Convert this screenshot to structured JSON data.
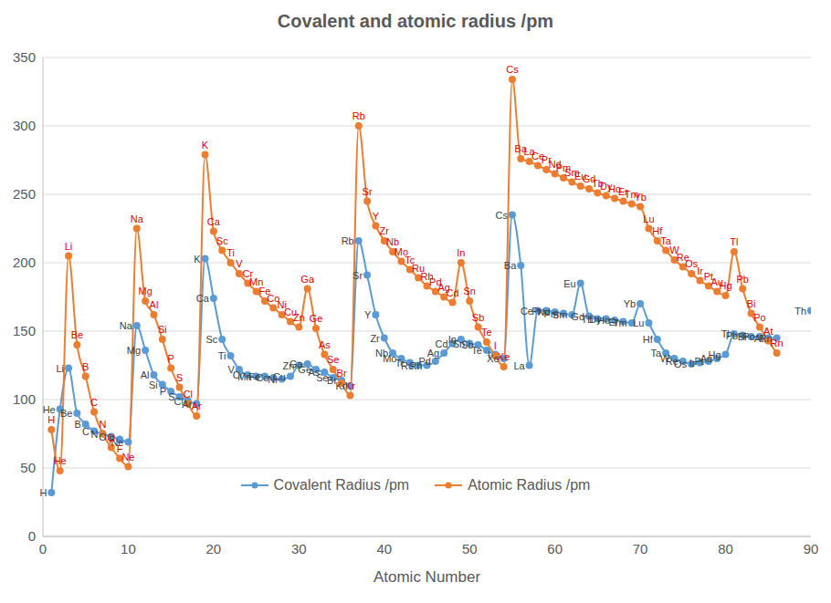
{
  "chart_data": {
    "type": "line",
    "title": "Covalent and atomic radius /pm",
    "x_label": "Atomic Number",
    "x": [
      1,
      2,
      3,
      4,
      5,
      6,
      7,
      8,
      9,
      10,
      11,
      12,
      13,
      14,
      15,
      16,
      17,
      18,
      19,
      20,
      21,
      22,
      23,
      24,
      25,
      26,
      27,
      28,
      29,
      30,
      31,
      32,
      33,
      34,
      35,
      36,
      37,
      38,
      39,
      40,
      41,
      42,
      43,
      44,
      45,
      46,
      47,
      48,
      49,
      50,
      51,
      52,
      53,
      54,
      55,
      56,
      57,
      58,
      59,
      60,
      61,
      62,
      63,
      64,
      65,
      66,
      67,
      68,
      69,
      70,
      71,
      72,
      73,
      74,
      75,
      76,
      77,
      78,
      79,
      80,
      81,
      82,
      83,
      84,
      85,
      86,
      87,
      88,
      89,
      90
    ],
    "series": [
      {
        "name": "Covalent Radius /pm",
        "color": "#5B9BD5",
        "marker": "circle",
        "values": [
          32,
          93,
          123,
          90,
          82,
          77,
          75,
          73,
          71,
          69,
          154,
          136,
          118,
          111,
          106,
          102,
          99,
          97,
          203,
          174,
          144,
          132,
          122,
          118,
          117,
          117,
          116,
          115,
          117,
          125,
          126,
          122,
          120,
          116,
          114,
          110,
          216,
          191,
          162,
          145,
          134,
          130,
          127,
          125,
          125,
          128,
          134,
          141,
          144,
          141,
          140,
          136,
          133,
          130,
          235,
          198,
          125,
          165,
          165,
          164,
          163,
          162,
          185,
          161,
          159,
          159,
          158,
          157,
          156,
          170,
          156,
          144,
          134,
          130,
          128,
          126,
          127,
          128,
          130,
          133,
          148,
          147,
          146,
          146,
          145,
          145,
          null,
          null,
          null,
          165
        ],
        "labels": [
          "H",
          "He",
          "Li",
          "Be",
          "B",
          "C",
          "N",
          "O",
          "F",
          "Ne",
          "Na",
          "Mg",
          "Al",
          "Si",
          "P",
          "S",
          "Cl",
          "Ar",
          "K",
          "Ca",
          "Sc",
          "Ti",
          "V",
          "Cr",
          "Mn",
          "Fe",
          "Co",
          "Ni",
          "Cu",
          "Zn",
          "Ga",
          "Ge",
          "As",
          "Se",
          "Br",
          "Kr",
          "Rb",
          "Sr",
          "Y",
          "Zr",
          "Nb",
          "Mo",
          "Tc",
          "Ru",
          "Rh",
          "Pd",
          "Ag",
          "Cd",
          "In",
          "Sn",
          "Sb",
          "Te",
          "I",
          "Xe",
          "Cs",
          "Ba",
          "La",
          "Ce",
          "Pr",
          "Nd",
          "Pm",
          "Sm",
          "Eu",
          "Gd",
          "Tb",
          "Dy",
          "Ho",
          "Er",
          "Tm",
          "Yb",
          "Lu",
          "Hf",
          "Ta",
          "W",
          "Re",
          "Os",
          "Ir",
          "Pt",
          "Au",
          "Hg",
          "Tl",
          "Pb",
          "Bi",
          "Po",
          "At",
          "Rn",
          null,
          null,
          null,
          "Th"
        ]
      },
      {
        "name": "Atomic Radius /pm",
        "color": "#ED7D31",
        "marker": "circle",
        "values": [
          78,
          48,
          205,
          140,
          117,
          91,
          75,
          65,
          57,
          51,
          225,
          172,
          162,
          144,
          123,
          109,
          97,
          88,
          279,
          223,
          209,
          200,
          192,
          185,
          179,
          172,
          167,
          162,
          157,
          153,
          181,
          152,
          133,
          122,
          112,
          103,
          300,
          245,
          227,
          216,
          208,
          201,
          195,
          189,
          183,
          179,
          175,
          171,
          200,
          172,
          153,
          142,
          132,
          124,
          334,
          276,
          274,
          271,
          268,
          265,
          262,
          259,
          256,
          254,
          251,
          249,
          247,
          245,
          243,
          241,
          225,
          216,
          209,
          202,
          197,
          192,
          187,
          183,
          179,
          176,
          208,
          181,
          163,
          153,
          143,
          134,
          null,
          null,
          null,
          null
        ],
        "labels": [
          "H",
          "He",
          "Li",
          "Be",
          "B",
          "C",
          "N",
          "O",
          "F",
          "Ne",
          "Na",
          "Mg",
          "Al",
          "Si",
          "P",
          "S",
          "Cl",
          "Ar",
          "K",
          "Ca",
          "Sc",
          "Ti",
          "V",
          "Cr",
          "Mn",
          "Fe",
          "Co",
          "Ni",
          "Cu",
          "Zn",
          "Ga",
          "Ge",
          "As",
          "Se",
          "Br",
          "Kr",
          "Rb",
          "Sr",
          "Y",
          "Zr",
          "Nb",
          "Mo",
          "Tc",
          "Ru",
          "Rh",
          "Pd",
          "Ag",
          "Cd",
          "In",
          "Sn",
          "Sb",
          "Te",
          "I",
          "Xe",
          "Cs",
          "Ba",
          "La",
          "Ce",
          "Pr",
          "Nd",
          "Pm",
          "Sm",
          "Eu",
          "Gd",
          "Tb",
          "Dy",
          "Ho",
          "Er",
          "Tm",
          "Yb",
          "Lu",
          "Hf",
          "Ta",
          "W",
          "Re",
          "Os",
          "Ir",
          "Pt",
          "Au",
          "Hg",
          "Tl",
          "Pb",
          "Bi",
          "Po",
          "At",
          "Rn",
          null,
          null,
          null,
          null
        ]
      }
    ],
    "xlim": [
      0,
      90
    ],
    "xticks": [
      0,
      10,
      20,
      30,
      40,
      50,
      60,
      70,
      80,
      90
    ],
    "ylim": [
      0,
      350
    ],
    "yticks": [
      0,
      50,
      100,
      150,
      200,
      250,
      300,
      350
    ],
    "grid": true,
    "legend": "bottom"
  }
}
